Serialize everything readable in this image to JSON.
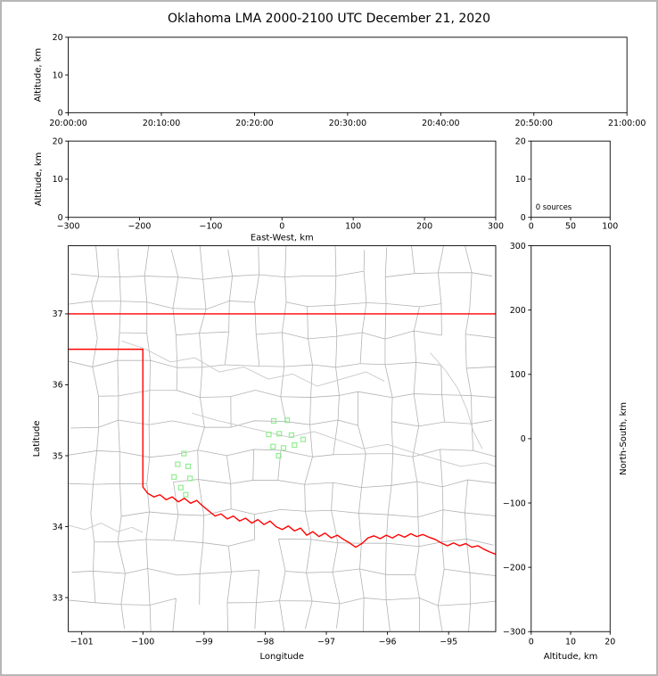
{
  "figure": {
    "title": "Oklahoma LMA 2000-2100 UTC December 21, 2020"
  },
  "colors": {
    "axis": "#000000",
    "county_line": "#b3b3b3",
    "river_line": "#c8c8c8",
    "state_border": "#ff0000",
    "station_marker": "#90ee90",
    "figure_border": "#b7b7b7",
    "background": "#ffffff"
  },
  "chart_data": [
    {
      "id": "time_altitude",
      "type": "scatter",
      "title": "",
      "xlabel": "",
      "ylabel": "Altitude, km",
      "xtick_labels": [
        "20:00:00",
        "20:10:00",
        "20:20:00",
        "20:30:00",
        "20:40:00",
        "20:50:00",
        "21:00:00"
      ],
      "ylim": [
        0,
        20
      ],
      "yticks": [
        0,
        10,
        20
      ],
      "grid": false,
      "points": []
    },
    {
      "id": "east_west_altitude",
      "type": "scatter",
      "xlabel": "East-West, km",
      "ylabel": "Altitude, km",
      "xlim": [
        -300,
        300
      ],
      "xticks": [
        -300,
        -200,
        -100,
        0,
        100,
        200,
        300
      ],
      "ylim": [
        0,
        20
      ],
      "yticks": [
        0,
        10,
        20
      ],
      "grid": false,
      "points": []
    },
    {
      "id": "source_histogram",
      "type": "line",
      "annotation": "0 sources",
      "xlim": [
        0,
        100
      ],
      "xticks": [
        0,
        50,
        100
      ],
      "ylim": [
        0,
        20
      ],
      "yticks": [
        0,
        10,
        20
      ],
      "grid": false,
      "points": []
    },
    {
      "id": "plan_view",
      "type": "scatter",
      "xlabel": "Longitude",
      "ylabel": "Latitude",
      "xlim": [
        -101.22,
        -94.23
      ],
      "xticks": [
        -101,
        -100,
        -99,
        -98,
        -97,
        -96,
        -95
      ],
      "ylim": [
        32.52,
        37.96
      ],
      "yticks": [
        33,
        34,
        35,
        36,
        37
      ],
      "grid": false,
      "marker": "open-square",
      "stations": [
        [
          -99.33,
          35.03
        ],
        [
          -99.43,
          34.88
        ],
        [
          -99.26,
          34.85
        ],
        [
          -99.49,
          34.7
        ],
        [
          -99.23,
          34.68
        ],
        [
          -99.38,
          34.55
        ],
        [
          -99.3,
          34.45
        ],
        [
          -97.86,
          35.49
        ],
        [
          -97.64,
          35.5
        ],
        [
          -97.94,
          35.3
        ],
        [
          -97.77,
          35.31
        ],
        [
          -97.57,
          35.29
        ],
        [
          -97.38,
          35.23
        ],
        [
          -97.87,
          35.13
        ],
        [
          -97.7,
          35.11
        ],
        [
          -97.52,
          35.15
        ],
        [
          -97.78,
          35.0
        ]
      ],
      "state_border": [
        [
          [
            -101.22,
            37.0
          ],
          [
            -94.23,
            37.0
          ]
        ],
        [
          [
            -101.22,
            36.5
          ],
          [
            -100.0,
            36.5
          ],
          [
            -100.0,
            34.56
          ],
          [
            -99.92,
            34.47
          ],
          [
            -99.82,
            34.42
          ],
          [
            -99.72,
            34.45
          ],
          [
            -99.62,
            34.38
          ],
          [
            -99.52,
            34.42
          ],
          [
            -99.42,
            34.35
          ],
          [
            -99.32,
            34.4
          ],
          [
            -99.22,
            34.33
          ],
          [
            -99.12,
            34.37
          ],
          [
            -99.02,
            34.29
          ],
          [
            -98.92,
            34.22
          ],
          [
            -98.82,
            34.15
          ],
          [
            -98.72,
            34.18
          ],
          [
            -98.62,
            34.11
          ],
          [
            -98.52,
            34.15
          ],
          [
            -98.42,
            34.08
          ],
          [
            -98.32,
            34.12
          ],
          [
            -98.22,
            34.05
          ],
          [
            -98.12,
            34.1
          ],
          [
            -98.02,
            34.03
          ],
          [
            -97.92,
            34.08
          ],
          [
            -97.82,
            34.0
          ],
          [
            -97.72,
            33.96
          ],
          [
            -97.62,
            34.01
          ],
          [
            -97.52,
            33.94
          ],
          [
            -97.42,
            33.98
          ],
          [
            -97.32,
            33.88
          ],
          [
            -97.22,
            33.93
          ],
          [
            -97.12,
            33.86
          ],
          [
            -97.02,
            33.91
          ],
          [
            -96.92,
            33.84
          ],
          [
            -96.82,
            33.88
          ],
          [
            -96.72,
            33.82
          ],
          [
            -96.62,
            33.77
          ],
          [
            -96.52,
            33.71
          ],
          [
            -96.42,
            33.76
          ],
          [
            -96.32,
            33.84
          ],
          [
            -96.22,
            33.87
          ],
          [
            -96.12,
            33.83
          ],
          [
            -96.02,
            33.88
          ],
          [
            -95.92,
            33.84
          ],
          [
            -95.82,
            33.89
          ],
          [
            -95.72,
            33.85
          ],
          [
            -95.62,
            33.9
          ],
          [
            -95.52,
            33.86
          ],
          [
            -95.42,
            33.89
          ],
          [
            -95.32,
            33.85
          ],
          [
            -95.22,
            33.82
          ],
          [
            -95.12,
            33.77
          ],
          [
            -95.02,
            33.73
          ],
          [
            -94.92,
            33.77
          ],
          [
            -94.82,
            33.73
          ],
          [
            -94.72,
            33.76
          ],
          [
            -94.62,
            33.71
          ],
          [
            -94.52,
            33.73
          ],
          [
            -94.42,
            33.68
          ],
          [
            -94.32,
            33.64
          ],
          [
            -94.23,
            33.61
          ]
        ]
      ],
      "rivers": [
        [
          [
            -100.35,
            36.62
          ],
          [
            -99.95,
            36.5
          ],
          [
            -99.55,
            36.32
          ],
          [
            -99.15,
            36.38
          ],
          [
            -98.75,
            36.18
          ],
          [
            -98.35,
            36.25
          ],
          [
            -97.95,
            36.08
          ],
          [
            -97.55,
            36.15
          ],
          [
            -97.15,
            35.98
          ],
          [
            -96.75,
            36.08
          ],
          [
            -96.35,
            36.18
          ],
          [
            -96.05,
            36.05
          ]
        ],
        [
          [
            -99.2,
            35.6
          ],
          [
            -98.8,
            35.5
          ],
          [
            -98.4,
            35.42
          ],
          [
            -98.0,
            35.34
          ],
          [
            -97.6,
            35.26
          ],
          [
            -97.2,
            35.34
          ],
          [
            -96.8,
            35.22
          ],
          [
            -96.4,
            35.1
          ],
          [
            -96.0,
            35.16
          ],
          [
            -95.6,
            35.05
          ],
          [
            -95.2,
            34.95
          ],
          [
            -94.8,
            34.85
          ],
          [
            -94.4,
            34.9
          ],
          [
            -94.23,
            34.85
          ]
        ],
        [
          [
            -101.22,
            34.02
          ],
          [
            -100.95,
            33.96
          ],
          [
            -100.68,
            34.05
          ],
          [
            -100.41,
            33.93
          ],
          [
            -100.18,
            33.99
          ],
          [
            -100.0,
            33.92
          ]
        ],
        [
          [
            -95.3,
            36.45
          ],
          [
            -95.05,
            36.2
          ],
          [
            -94.85,
            35.95
          ],
          [
            -94.7,
            35.65
          ],
          [
            -94.6,
            35.35
          ],
          [
            -94.45,
            35.1
          ]
        ]
      ]
    },
    {
      "id": "north_south_altitude",
      "type": "scatter",
      "xlabel": "Altitude, km",
      "ylabel": "North-South, km",
      "xlim": [
        0,
        20
      ],
      "xticks": [
        0,
        10,
        20
      ],
      "ylim": [
        -300,
        300
      ],
      "yticks": [
        -300,
        -200,
        -100,
        0,
        100,
        200,
        300
      ],
      "grid": false,
      "points": []
    }
  ]
}
